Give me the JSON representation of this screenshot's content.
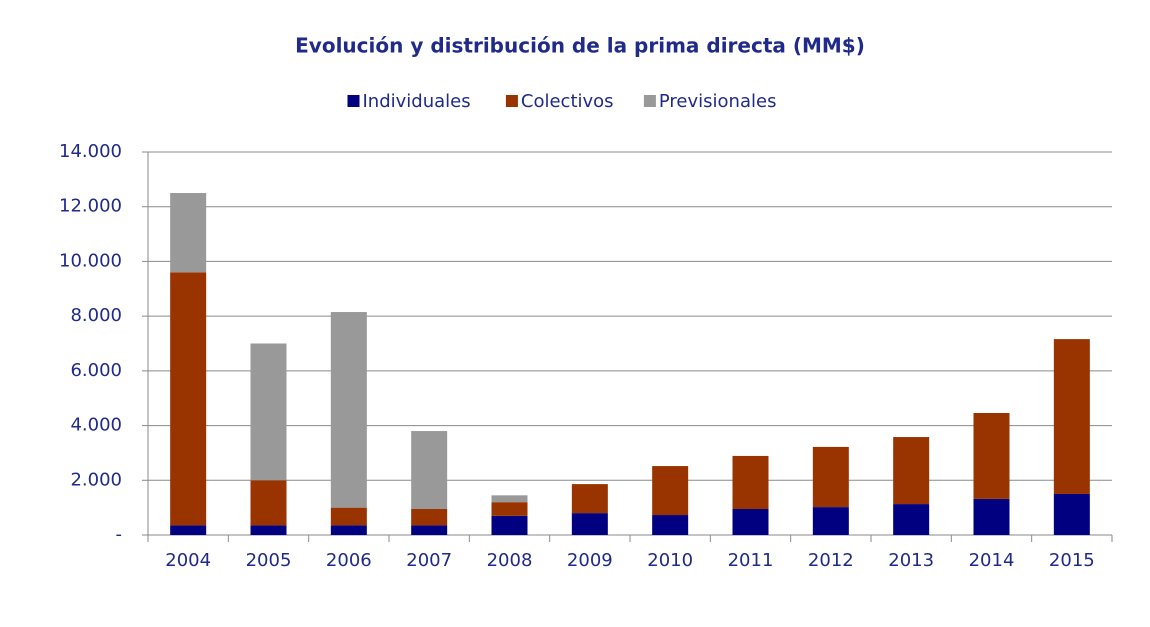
{
  "chart_data": {
    "type": "stacked-bar",
    "title": "Evolución y distribución de la prima directa (MM$)",
    "categories": [
      "2004",
      "2005",
      "2006",
      "2007",
      "2008",
      "2009",
      "2010",
      "2011",
      "2012",
      "2013",
      "2014",
      "2015"
    ],
    "series": [
      {
        "name": "Individuales",
        "color": "#000080",
        "values": [
          350,
          350,
          350,
          350,
          700,
          800,
          730,
          950,
          1020,
          1130,
          1320,
          1500
        ]
      },
      {
        "name": "Colectivos",
        "color": "#993300",
        "values": [
          9250,
          1650,
          650,
          600,
          500,
          1060,
          1790,
          1940,
          2200,
          2450,
          3140,
          5660
        ]
      },
      {
        "name": "Previsionales",
        "color": "#999999",
        "values": [
          2900,
          5000,
          7150,
          2850,
          250,
          null,
          null,
          null,
          null,
          null,
          null,
          null
        ]
      }
    ],
    "ylim": [
      0,
      14000
    ],
    "yticks": [
      {
        "value": 0,
        "label": "-"
      },
      {
        "value": 2000,
        "label": "2.000"
      },
      {
        "value": 4000,
        "label": "4.000"
      },
      {
        "value": 6000,
        "label": "6.000"
      },
      {
        "value": 8000,
        "label": "8.000"
      },
      {
        "value": 10000,
        "label": "10.000"
      },
      {
        "value": 12000,
        "label": "12.000"
      },
      {
        "value": 14000,
        "label": "14.000"
      }
    ],
    "grid": true,
    "legend": "top"
  }
}
